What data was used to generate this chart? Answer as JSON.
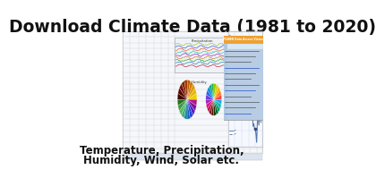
{
  "title": "Download Climate Data (1981 to 2020)",
  "subtitle_line1": "Temperature, Precipitation,",
  "subtitle_line2": "Humidity, Wind, Solar etc.",
  "bg_color": "#ffffff",
  "title_fontsize": 13.5,
  "subtitle_fontsize": 8.5,
  "title_color": "#111111",
  "subtitle_color": "#111111",
  "ss_bg": "#f5f7fa",
  "ss_border": "#bbbbbb",
  "ss_grid": "#cccccc",
  "ss_header_bg": "#dce4ef",
  "chart_bg": "#f5f8ff",
  "chart_line_color": "#5577aa",
  "chart_grid": "#d0d8e8",
  "pie1_colors": [
    "#f0d000",
    "#e8b800",
    "#e09800",
    "#d07800",
    "#b85800",
    "#a03800",
    "#882000",
    "#701000",
    "#580800",
    "#400400",
    "#287020",
    "#409840",
    "#50b860",
    "#40a880",
    "#2088a0",
    "#1060c0",
    "#2040e0",
    "#5020c8",
    "#8010a0",
    "#b01880"
  ],
  "pie2_colors": [
    "#ff4444",
    "#ff7722",
    "#ffaa00",
    "#ddcc00",
    "#88cc00",
    "#22aa44",
    "#00aa88",
    "#0088cc",
    "#2266ee",
    "#6644dd",
    "#aa22bb",
    "#dd1188",
    "#bb1144",
    "#881122",
    "#441100",
    "#223300",
    "#006622",
    "#009966",
    "#00bbaa",
    "#22aaee"
  ],
  "browser_bg": "#b8cce4",
  "browser_toolbar": "#d8e8f5",
  "browser_header": "#f0a030",
  "browser_sidebar_bg": "#e8f0f8",
  "browser_link": "#2255cc"
}
